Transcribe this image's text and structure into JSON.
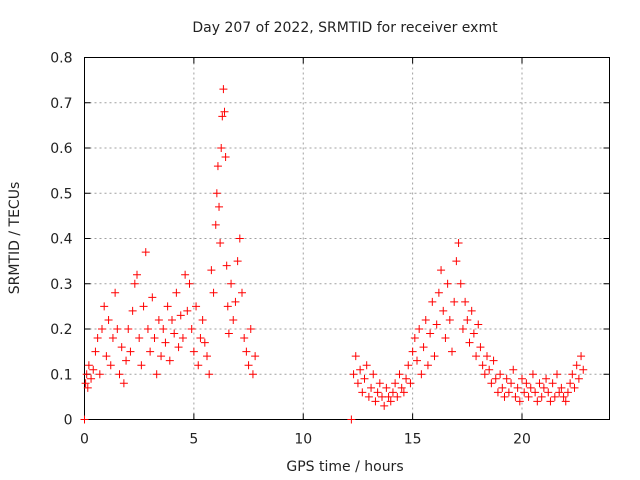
{
  "chart_data": {
    "type": "scatter",
    "title": "Day 207 of 2022, SRMTID for receiver exmt",
    "xlabel": "GPS time / hours",
    "ylabel": "SRMTID / TECUs",
    "xlim": [
      0,
      24
    ],
    "ylim": [
      0,
      0.8
    ],
    "x_ticks": [
      0,
      5,
      10,
      15,
      20
    ],
    "y_ticks": [
      0,
      0.1,
      0.2,
      0.3,
      0.4,
      0.5,
      0.6,
      0.7,
      0.8
    ],
    "x_tick_labels": [
      "0",
      "5",
      "10",
      "15",
      "20"
    ],
    "y_tick_labels": [
      "0",
      "0.1",
      "0.2",
      "0.3",
      "0.4",
      "0.5",
      "0.6",
      "0.7",
      "0.8"
    ],
    "grid": true,
    "marker": "+",
    "color": "#ff0000",
    "series": [
      {
        "name": "SRMTID",
        "x": [
          0.0,
          0.05,
          0.1,
          0.15,
          0.2,
          0.3,
          0.4,
          0.5,
          0.6,
          0.7,
          0.8,
          0.9,
          1.0,
          1.1,
          1.2,
          1.3,
          1.4,
          1.5,
          1.6,
          1.7,
          1.8,
          1.9,
          2.0,
          2.1,
          2.2,
          2.3,
          2.4,
          2.5,
          2.6,
          2.7,
          2.8,
          2.9,
          3.0,
          3.1,
          3.2,
          3.3,
          3.4,
          3.5,
          3.6,
          3.7,
          3.8,
          3.9,
          4.0,
          4.1,
          4.2,
          4.3,
          4.4,
          4.5,
          4.6,
          4.7,
          4.8,
          4.9,
          5.0,
          5.1,
          5.2,
          5.3,
          5.4,
          5.5,
          5.6,
          5.7,
          5.8,
          5.9,
          6.0,
          6.05,
          6.1,
          6.15,
          6.2,
          6.25,
          6.3,
          6.35,
          6.4,
          6.45,
          6.5,
          6.55,
          6.6,
          6.7,
          6.8,
          6.9,
          7.0,
          7.1,
          7.2,
          7.3,
          7.4,
          7.5,
          7.6,
          7.7,
          7.8,
          12.2,
          12.3,
          12.4,
          12.5,
          12.6,
          12.7,
          12.8,
          12.9,
          13.0,
          13.1,
          13.2,
          13.3,
          13.4,
          13.5,
          13.6,
          13.7,
          13.8,
          13.9,
          14.0,
          14.1,
          14.2,
          14.3,
          14.4,
          14.5,
          14.6,
          14.7,
          14.8,
          14.9,
          15.0,
          15.1,
          15.2,
          15.3,
          15.4,
          15.5,
          15.6,
          15.7,
          15.8,
          15.9,
          16.0,
          16.1,
          16.2,
          16.3,
          16.4,
          16.5,
          16.6,
          16.7,
          16.8,
          16.9,
          17.0,
          17.1,
          17.2,
          17.3,
          17.4,
          17.5,
          17.6,
          17.7,
          17.8,
          17.9,
          18.0,
          18.1,
          18.2,
          18.3,
          18.4,
          18.5,
          18.6,
          18.7,
          18.8,
          18.9,
          19.0,
          19.1,
          19.2,
          19.3,
          19.4,
          19.5,
          19.6,
          19.7,
          19.8,
          19.9,
          20.0,
          20.1,
          20.2,
          20.3,
          20.4,
          20.5,
          20.6,
          20.7,
          20.8,
          20.9,
          21.0,
          21.1,
          21.2,
          21.3,
          21.4,
          21.5,
          21.6,
          21.7,
          21.8,
          21.9,
          22.0,
          22.1,
          22.2,
          22.3,
          22.4,
          22.5,
          22.6,
          22.7,
          22.8
        ],
        "y": [
          0.0,
          0.08,
          0.1,
          0.07,
          0.12,
          0.09,
          0.11,
          0.15,
          0.18,
          0.1,
          0.2,
          0.25,
          0.14,
          0.22,
          0.12,
          0.18,
          0.28,
          0.2,
          0.1,
          0.16,
          0.08,
          0.13,
          0.2,
          0.15,
          0.24,
          0.3,
          0.32,
          0.18,
          0.12,
          0.25,
          0.37,
          0.2,
          0.15,
          0.27,
          0.18,
          0.1,
          0.22,
          0.14,
          0.2,
          0.17,
          0.25,
          0.13,
          0.22,
          0.19,
          0.28,
          0.16,
          0.23,
          0.18,
          0.32,
          0.24,
          0.3,
          0.2,
          0.15,
          0.25,
          0.12,
          0.18,
          0.22,
          0.17,
          0.14,
          0.1,
          0.33,
          0.28,
          0.43,
          0.5,
          0.56,
          0.47,
          0.39,
          0.6,
          0.67,
          0.73,
          0.68,
          0.58,
          0.34,
          0.25,
          0.19,
          0.3,
          0.22,
          0.26,
          0.35,
          0.4,
          0.28,
          0.18,
          0.15,
          0.12,
          0.2,
          0.1,
          0.14,
          0.0,
          0.1,
          0.14,
          0.08,
          0.11,
          0.06,
          0.09,
          0.12,
          0.05,
          0.07,
          0.1,
          0.04,
          0.06,
          0.08,
          0.05,
          0.03,
          0.07,
          0.05,
          0.04,
          0.06,
          0.08,
          0.05,
          0.1,
          0.07,
          0.06,
          0.09,
          0.12,
          0.08,
          0.15,
          0.18,
          0.13,
          0.2,
          0.1,
          0.16,
          0.22,
          0.12,
          0.19,
          0.26,
          0.14,
          0.21,
          0.28,
          0.33,
          0.24,
          0.18,
          0.3,
          0.22,
          0.15,
          0.26,
          0.35,
          0.39,
          0.3,
          0.2,
          0.26,
          0.22,
          0.17,
          0.24,
          0.19,
          0.14,
          0.21,
          0.16,
          0.12,
          0.1,
          0.14,
          0.11,
          0.08,
          0.13,
          0.09,
          0.06,
          0.1,
          0.07,
          0.05,
          0.09,
          0.06,
          0.08,
          0.11,
          0.05,
          0.07,
          0.04,
          0.09,
          0.06,
          0.08,
          0.05,
          0.07,
          0.1,
          0.06,
          0.04,
          0.08,
          0.05,
          0.07,
          0.09,
          0.06,
          0.04,
          0.08,
          0.05,
          0.1,
          0.06,
          0.07,
          0.05,
          0.04,
          0.06,
          0.08,
          0.1,
          0.07,
          0.12,
          0.09,
          0.14,
          0.11
        ]
      }
    ]
  }
}
